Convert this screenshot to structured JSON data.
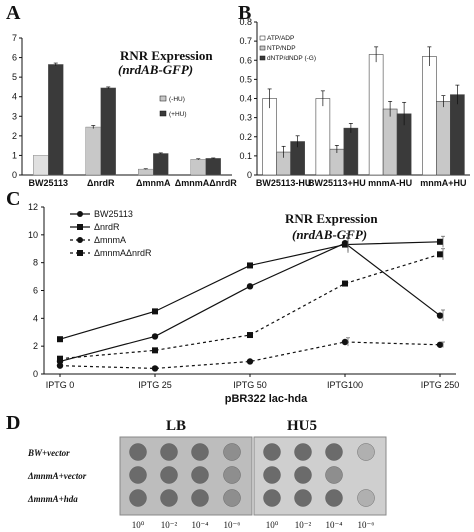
{
  "panels": {
    "a": "A",
    "b": "B",
    "c": "C",
    "d": "D"
  },
  "colors": {
    "minus_hu": "#c8c8c8",
    "plus_hu": "#3a3a3a",
    "baseline": "#e0e0e0"
  },
  "chart_data": [
    {
      "id": "A",
      "type": "bar",
      "title": "RNR Expression",
      "subtitle": "(nrdAB-GFP)",
      "categories": [
        "BW25113",
        "ΔnrdR",
        "ΔmnmA",
        "ΔmnmAΔnrdR"
      ],
      "series": [
        {
          "name": "(-HU)",
          "values": [
            1.0,
            2.45,
            0.3,
            0.8
          ],
          "errors": [
            0,
            0.08,
            0.02,
            0.03
          ]
        },
        {
          "name": "(+HU)",
          "values": [
            5.65,
            4.45,
            1.1,
            0.85
          ],
          "errors": [
            0.07,
            0.05,
            0.03,
            0.02
          ]
        }
      ],
      "ylim": [
        0,
        7
      ],
      "yticks": [
        "0",
        "1",
        "2",
        "3",
        "4",
        "5",
        "6",
        "7"
      ]
    },
    {
      "id": "B",
      "type": "bar",
      "categories": [
        "BW25113-HU",
        "BW25113+HU",
        "mnmA-HU",
        "mnmA+HU"
      ],
      "series": [
        {
          "name": "ATP/ADP",
          "values": [
            0.4,
            0.4,
            0.63,
            0.62
          ],
          "errors": [
            0.05,
            0.04,
            0.04,
            0.05
          ]
        },
        {
          "name": "NTP/NDP",
          "values": [
            0.12,
            0.135,
            0.345,
            0.385
          ],
          "errors": [
            0.03,
            0.02,
            0.04,
            0.03
          ]
        },
        {
          "name": "dNTP/dNDP (-G)",
          "values": [
            0.175,
            0.245,
            0.32,
            0.42
          ],
          "errors": [
            0.03,
            0.025,
            0.06,
            0.05
          ]
        }
      ],
      "ylim": [
        0,
        0.8
      ],
      "yticks": [
        "0",
        "0.1",
        "0.2",
        "0.3",
        "0.4",
        "0.5",
        "0.6",
        "0.7",
        "0.8"
      ]
    },
    {
      "id": "C",
      "type": "line",
      "title": "RNR Expression",
      "subtitle": "(nrdAB-GFP)",
      "xlabel": "pBR322 lac-hda",
      "categories": [
        "IPTG 0",
        "IPTG 25",
        "IPTG 50",
        "IPTG100",
        "IPTG 250"
      ],
      "series": [
        {
          "name": "BW25113",
          "values": [
            0.9,
            2.7,
            6.3,
            9.4,
            4.2
          ]
        },
        {
          "name": "ΔnrdR",
          "values": [
            2.5,
            4.5,
            7.8,
            9.3,
            9.5
          ]
        },
        {
          "name": "ΔmnmA",
          "values": [
            0.6,
            0.4,
            0.9,
            2.3,
            2.1
          ]
        },
        {
          "name": "ΔmnmAΔnrdR",
          "values": [
            1.1,
            1.7,
            2.8,
            6.5,
            8.6
          ]
        }
      ],
      "ylim": [
        0,
        12
      ],
      "yticks": [
        "0",
        "2",
        "4",
        "6",
        "8",
        "10",
        "12"
      ]
    }
  ],
  "spot_assay": {
    "media": [
      "LB",
      "HU5"
    ],
    "strains": [
      "BW+vector",
      "ΔmnmA+vector",
      "ΔmnmA+hda"
    ],
    "dilutions": [
      "10⁰",
      "10⁻²",
      "10⁻⁴",
      "10⁻⁶",
      "10⁰",
      "10⁻²",
      "10⁻⁴",
      "10⁻⁶"
    ]
  }
}
